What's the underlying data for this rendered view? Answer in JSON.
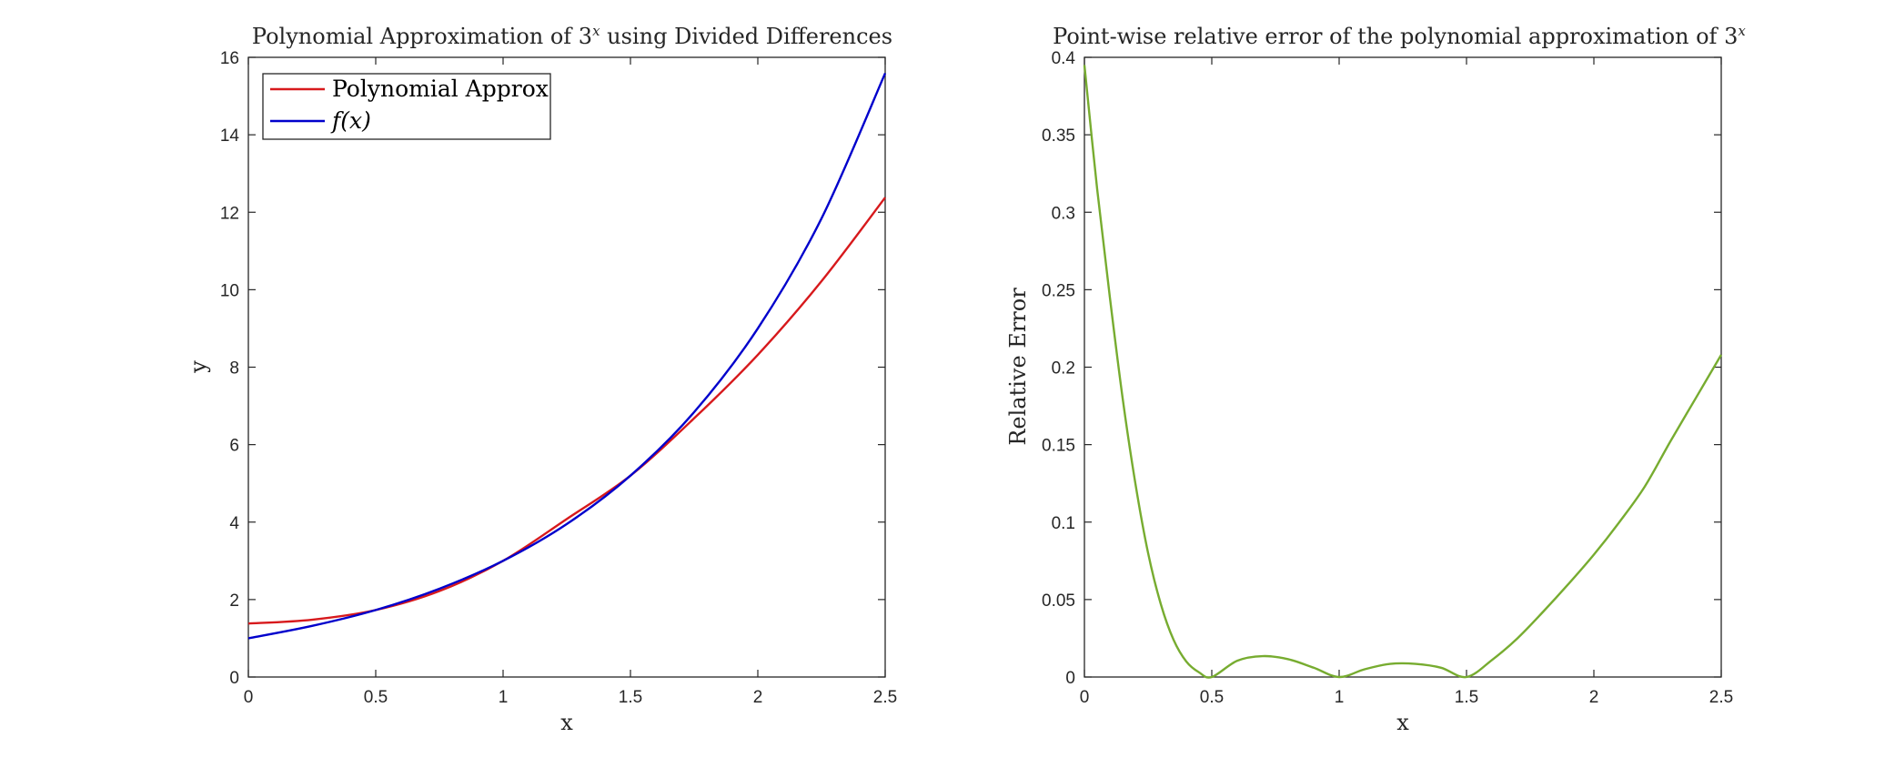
{
  "chart_data": [
    {
      "type": "line",
      "title": "Polynomial Approximation of 3",
      "title_sup": "x",
      "title_suffix": " using Divided Differences",
      "xlabel": "x",
      "ylabel": "y",
      "xlim": [
        0,
        2.5
      ],
      "ylim": [
        0,
        16
      ],
      "xticks": [
        "0",
        "0.5",
        "1",
        "1.5",
        "2",
        "2.5"
      ],
      "yticks": [
        "0",
        "2",
        "4",
        "6",
        "8",
        "10",
        "12",
        "14",
        "16"
      ],
      "grid": false,
      "legend_position": "top-left",
      "series": [
        {
          "name": "Polynomial Approx",
          "color": "#d7191c",
          "x": [
            0,
            0.25,
            0.5,
            0.75,
            1.0,
            1.25,
            1.5,
            1.75,
            2.0,
            2.25,
            2.5
          ],
          "y": [
            1.38,
            1.48,
            1.73,
            2.22,
            3.0,
            4.08,
            5.2,
            6.68,
            8.32,
            10.22,
            12.38
          ]
        },
        {
          "name": "f(x)",
          "color": "#0000cc",
          "x": [
            0,
            0.25,
            0.5,
            0.75,
            1.0,
            1.25,
            1.5,
            1.75,
            2.0,
            2.25,
            2.5
          ],
          "y": [
            1.0,
            1.32,
            1.73,
            2.28,
            3.0,
            3.95,
            5.2,
            6.84,
            9.0,
            11.84,
            15.59
          ]
        }
      ]
    },
    {
      "type": "line",
      "title": "Point-wise relative error of the polynomial approximation of 3",
      "title_sup": "x",
      "xlabel": "x",
      "ylabel": "Relative Error",
      "xlim": [
        0,
        2.5
      ],
      "ylim": [
        0,
        0.4
      ],
      "xticks": [
        "0",
        "0.5",
        "1",
        "1.5",
        "2",
        "2.5"
      ],
      "yticks": [
        "0",
        "0.05",
        "0.1",
        "0.15",
        "0.2",
        "0.25",
        "0.3",
        "0.35",
        "0.4"
      ],
      "grid": false,
      "series": [
        {
          "color": "#77ac30",
          "x": [
            0,
            0.05,
            0.1,
            0.15,
            0.2,
            0.25,
            0.3,
            0.35,
            0.4,
            0.45,
            0.5,
            0.6,
            0.7,
            0.8,
            0.9,
            1.0,
            1.1,
            1.2,
            1.3,
            1.4,
            1.5,
            1.6,
            1.7,
            1.8,
            1.9,
            2.0,
            2.1,
            2.2,
            2.3,
            2.4,
            2.5
          ],
          "y": [
            0.395,
            0.315,
            0.245,
            0.18,
            0.125,
            0.08,
            0.047,
            0.024,
            0.01,
            0.003,
            0.0,
            0.0105,
            0.0135,
            0.0115,
            0.006,
            0.0,
            0.005,
            0.0085,
            0.0085,
            0.006,
            0.0,
            0.011,
            0.025,
            0.042,
            0.06,
            0.079,
            0.1,
            0.123,
            0.152,
            0.18,
            0.208
          ]
        }
      ]
    }
  ]
}
